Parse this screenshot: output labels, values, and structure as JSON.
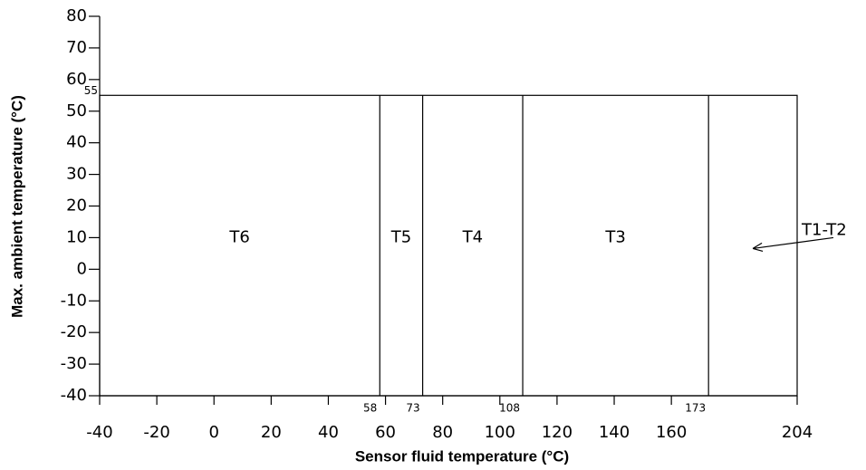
{
  "chart_data": {
    "type": "zones",
    "x_label": "Sensor fluid temperature (°C)",
    "y_label": "Max. ambient temperature (°C)",
    "xlim": [
      -40,
      204
    ],
    "ylim": [
      -40,
      80
    ],
    "xticks": [
      -40,
      -20,
      0,
      20,
      40,
      60,
      80,
      100,
      120,
      140,
      160,
      204
    ],
    "yticks": [
      -40,
      -30,
      -20,
      -10,
      0,
      10,
      20,
      30,
      40,
      50,
      60,
      70,
      80
    ],
    "max_ambient": 55,
    "boundaries": [
      58,
      73,
      108,
      173
    ],
    "zones": [
      "T6",
      "T5",
      "T4",
      "T3",
      "T1-T2"
    ]
  }
}
